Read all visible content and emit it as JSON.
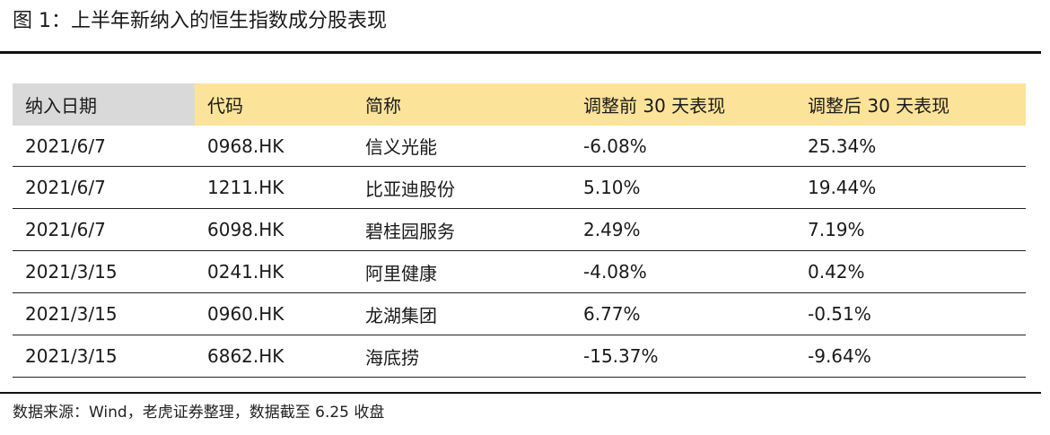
{
  "title": "图 1：上半年新纳入的恒生指数成分股表现",
  "table": {
    "headers": [
      "纳入日期",
      "代码",
      "简称",
      "调整前 30 天表现",
      "调整后 30 天表现"
    ],
    "rows": [
      [
        "2021/6/7",
        "0968.HK",
        "信义光能",
        "-6.08%",
        "25.34%"
      ],
      [
        "2021/6/7",
        "1211.HK",
        "比亚迪股份",
        "5.10%",
        "19.44%"
      ],
      [
        "2021/6/7",
        "6098.HK",
        "碧桂园服务",
        "2.49%",
        "7.19%"
      ],
      [
        "2021/3/15",
        "0241.HK",
        "阿里健康",
        "-4.08%",
        "0.42%"
      ],
      [
        "2021/3/15",
        "0960.HK",
        "龙湖集团",
        "6.77%",
        "-0.51%"
      ],
      [
        "2021/3/15",
        "6862.HK",
        "海底捞",
        "-15.37%",
        "-9.64%"
      ]
    ]
  },
  "source": "数据来源：Wind，老虎证券整理，数据截至 6.25 收盘",
  "colors": {
    "header_bg": "#fce39a",
    "first_header_bg": "#d9d9d9",
    "rule": "#111111"
  }
}
